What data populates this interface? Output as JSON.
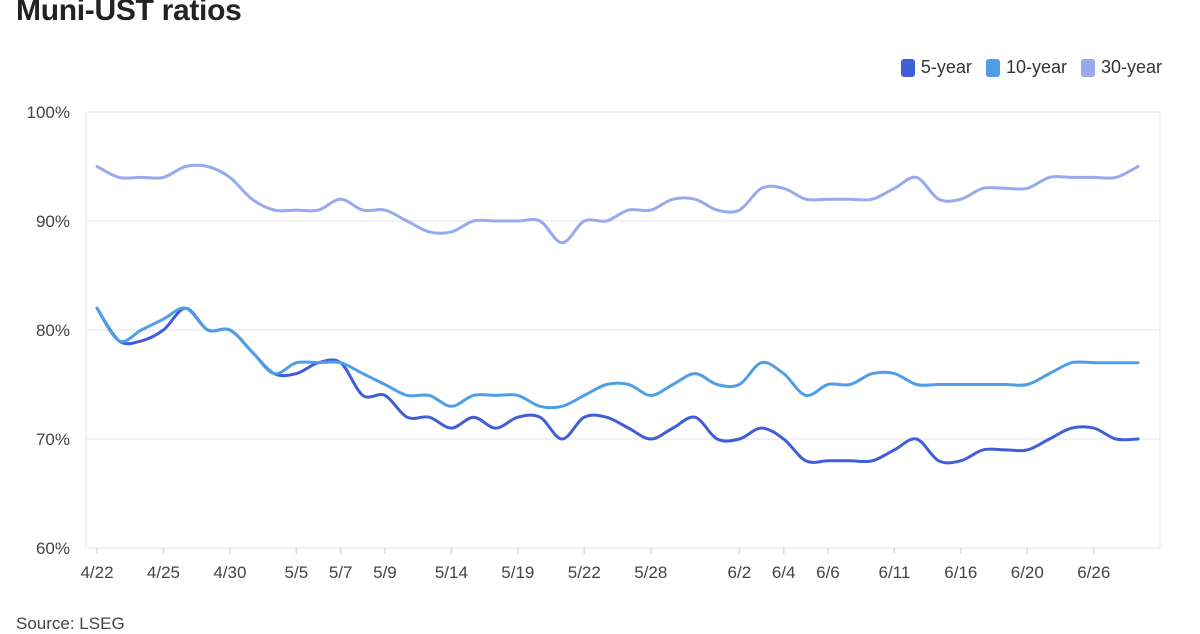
{
  "chart_data": {
    "type": "line",
    "title": "Muni-UST ratios",
    "source": "Source: LSEG",
    "xlabel": "",
    "ylabel": "",
    "ylim": [
      60,
      100
    ],
    "yticks": [
      60,
      70,
      80,
      90,
      100
    ],
    "ytick_labels": [
      "60%",
      "70%",
      "80%",
      "90%",
      "100%"
    ],
    "x_tick_labels": [
      {
        "label": "4/22",
        "index": 0
      },
      {
        "label": "4/25",
        "index": 3
      },
      {
        "label": "4/30",
        "index": 6
      },
      {
        "label": "5/5",
        "index": 9
      },
      {
        "label": "5/7",
        "index": 11
      },
      {
        "label": "5/9",
        "index": 13
      },
      {
        "label": "5/14",
        "index": 16
      },
      {
        "label": "5/19",
        "index": 19
      },
      {
        "label": "5/22",
        "index": 22
      },
      {
        "label": "5/28",
        "index": 25
      },
      {
        "label": "6/2",
        "index": 29
      },
      {
        "label": "6/4",
        "index": 31
      },
      {
        "label": "6/6",
        "index": 33
      },
      {
        "label": "6/11",
        "index": 36
      },
      {
        "label": "6/16",
        "index": 39
      },
      {
        "label": "6/20",
        "index": 42
      },
      {
        "label": "6/26",
        "index": 45
      }
    ],
    "grid": true,
    "legend_position": "top-right",
    "series": [
      {
        "name": "5-year",
        "color": "#3f5ed8",
        "values": [
          82,
          79,
          79,
          80,
          82,
          80,
          80,
          78,
          76,
          76,
          77,
          77,
          74,
          74,
          72,
          72,
          71,
          72,
          71,
          72,
          72,
          70,
          72,
          72,
          71,
          70,
          71,
          72,
          70,
          70,
          71,
          70,
          68,
          68,
          68,
          68,
          69,
          70,
          68,
          68,
          69,
          69,
          69,
          70,
          71,
          71,
          70,
          70
        ]
      },
      {
        "name": "10-year",
        "color": "#4f9ee8",
        "values": [
          82,
          79,
          80,
          81,
          82,
          80,
          80,
          78,
          76,
          77,
          77,
          77,
          76,
          75,
          74,
          74,
          73,
          74,
          74,
          74,
          73,
          73,
          74,
          75,
          75,
          74,
          75,
          76,
          75,
          75,
          77,
          76,
          74,
          75,
          75,
          76,
          76,
          75,
          75,
          75,
          75,
          75,
          75,
          76,
          77,
          77,
          77,
          77
        ]
      },
      {
        "name": "30-year",
        "color": "#98a9ee",
        "values": [
          95,
          94,
          94,
          94,
          95,
          95,
          94,
          92,
          91,
          91,
          91,
          92,
          91,
          91,
          90,
          89,
          89,
          90,
          90,
          90,
          90,
          88,
          90,
          90,
          91,
          91,
          92,
          92,
          91,
          91,
          93,
          93,
          92,
          92,
          92,
          92,
          93,
          94,
          92,
          92,
          93,
          93,
          93,
          94,
          94,
          94,
          94,
          95
        ]
      }
    ]
  }
}
